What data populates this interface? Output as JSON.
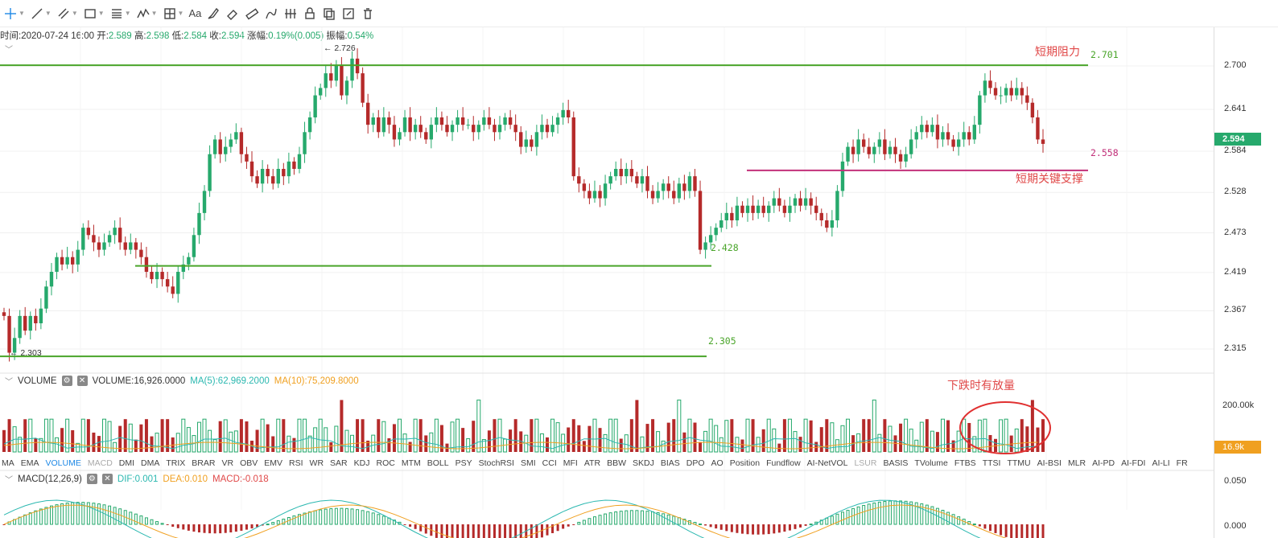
{
  "toolbar": {
    "tools": [
      "crosshair-icon",
      "trend-line-icon",
      "multi-line-icon",
      "rectangle-icon",
      "fib-icon",
      "wave-icon",
      "measure-icon",
      "text-icon",
      "brush-icon",
      "eraser-icon",
      "ruler-icon",
      "pattern-icon",
      "lock-icon",
      "copy-icon",
      "edit-icon",
      "delete-icon"
    ],
    "text_tool_label": "Aa"
  },
  "info": {
    "time_label": "时间:",
    "time_value": "2020-07-24 16:00",
    "open_label": "开:",
    "open_value": "2.589",
    "high_label": "高:",
    "high_value": "2.598",
    "low_label": "低:",
    "low_value": "2.584",
    "close_label": "收:",
    "close_value": "2.594",
    "change_label": "涨幅:",
    "change_value": "0.19%(0.005)",
    "amp_label": "振幅:",
    "amp_value": "0.54%"
  },
  "annotations": {
    "resistance_text": "短期阻力",
    "support_text": "短期关键支撑",
    "volume_note": "下跌时有放量",
    "high_marker": "← 2.726",
    "low_marker": "← 2.303",
    "level_2701": "2.701",
    "level_2558": "2.558",
    "level_2428": "2.428",
    "level_2305": "2.305"
  },
  "volume_header": {
    "name": "VOLUME",
    "value": "VOLUME:16,926.0000",
    "ma5": "MA(5):62,969.2000",
    "ma10": "MA(10):75,209.8000"
  },
  "macd_header": {
    "name": "MACD(12,26,9)",
    "dif": "DIF:0.001",
    "dea": "DEA:0.010",
    "macd": "MACD:-0.018"
  },
  "indicators": [
    "MA",
    "EMA",
    "VOLUME",
    "MACD",
    "DMI",
    "DMA",
    "TRIX",
    "BRAR",
    "VR",
    "OBV",
    "EMV",
    "RSI",
    "WR",
    "SAR",
    "KDJ",
    "ROC",
    "MTM",
    "BOLL",
    "PSY",
    "StochRSI",
    "SMI",
    "CCI",
    "MFI",
    "ATR",
    "BBW",
    "SKDJ",
    "BIAS",
    "DPO",
    "AO",
    "Position",
    "Fundflow",
    "AI-NetVOL",
    "LSUR",
    "BASIS",
    "TVolume",
    "FTBS",
    "TTSI",
    "TTMU",
    "AI-BSI",
    "MLR",
    "AI-PD",
    "AI-FDI",
    "AI-LI",
    "FR"
  ],
  "active_indicator": "VOLUME",
  "disabled_indicators": [
    "MACD",
    "LSUR"
  ],
  "price_axis": [
    "2.700",
    "2.641",
    "2.584",
    "2.528",
    "2.473",
    "2.419",
    "2.367",
    "2.315"
  ],
  "current_price_tag": "2.594",
  "volume_axis": [
    "200.00k"
  ],
  "volume_tag": "16.9k",
  "macd_axis": [
    "0.050",
    "0.000"
  ],
  "colors": {
    "up": "#26a96c",
    "down": "#b52a2a",
    "level": "#4aa52a",
    "support": "#c2307a",
    "ann": "#e04848",
    "ma5": "#2bb8b0",
    "ma10": "#f0a020"
  },
  "chart_data": {
    "type": "candlestick",
    "ylim": [
      2.28,
      2.735
    ],
    "levels": [
      {
        "value": 2.701,
        "label": "2.701"
      },
      {
        "value": 2.558,
        "label": "2.558"
      },
      {
        "value": 2.428,
        "label": "2.428"
      },
      {
        "value": 2.305,
        "label": "2.305"
      }
    ],
    "close": [
      2.36,
      2.31,
      2.33,
      2.36,
      2.34,
      2.36,
      2.35,
      2.37,
      2.4,
      2.42,
      2.44,
      2.43,
      2.44,
      2.43,
      2.45,
      2.48,
      2.47,
      2.46,
      2.45,
      2.46,
      2.47,
      2.48,
      2.46,
      2.45,
      2.46,
      2.45,
      2.44,
      2.42,
      2.41,
      2.42,
      2.41,
      2.4,
      2.39,
      2.42,
      2.43,
      2.44,
      2.47,
      2.5,
      2.53,
      2.58,
      2.6,
      2.58,
      2.59,
      2.6,
      2.61,
      2.58,
      2.57,
      2.55,
      2.54,
      2.56,
      2.55,
      2.54,
      2.56,
      2.55,
      2.57,
      2.56,
      2.58,
      2.61,
      2.63,
      2.66,
      2.67,
      2.69,
      2.68,
      2.7,
      2.66,
      2.68,
      2.71,
      2.69,
      2.65,
      2.62,
      2.63,
      2.61,
      2.63,
      2.62,
      2.6,
      2.61,
      2.63,
      2.61,
      2.62,
      2.61,
      2.6,
      2.62,
      2.63,
      2.62,
      2.61,
      2.62,
      2.63,
      2.62,
      2.62,
      2.61,
      2.62,
      2.63,
      2.62,
      2.61,
      2.62,
      2.63,
      2.62,
      2.61,
      2.59,
      2.6,
      2.59,
      2.61,
      2.62,
      2.61,
      2.62,
      2.63,
      2.64,
      2.63,
      2.55,
      2.54,
      2.53,
      2.52,
      2.53,
      2.52,
      2.54,
      2.55,
      2.56,
      2.55,
      2.56,
      2.55,
      2.54,
      2.55,
      2.53,
      2.52,
      2.53,
      2.54,
      2.53,
      2.52,
      2.54,
      2.53,
      2.55,
      2.53,
      2.45,
      2.46,
      2.47,
      2.48,
      2.49,
      2.5,
      2.49,
      2.51,
      2.5,
      2.51,
      2.5,
      2.51,
      2.5,
      2.51,
      2.52,
      2.51,
      2.5,
      2.51,
      2.52,
      2.51,
      2.52,
      2.51,
      2.5,
      2.49,
      2.48,
      2.49,
      2.53,
      2.57,
      2.59,
      2.58,
      2.6,
      2.59,
      2.58,
      2.59,
      2.6,
      2.58,
      2.59,
      2.58,
      2.57,
      2.58,
      2.6,
      2.61,
      2.62,
      2.61,
      2.62,
      2.6,
      2.61,
      2.6,
      2.59,
      2.6,
      2.61,
      2.6,
      2.62,
      2.66,
      2.68,
      2.67,
      2.66,
      2.66,
      2.67,
      2.66,
      2.67,
      2.66,
      2.65,
      2.63,
      2.6,
      2.594
    ],
    "volume_note": "下跌时有放量"
  }
}
